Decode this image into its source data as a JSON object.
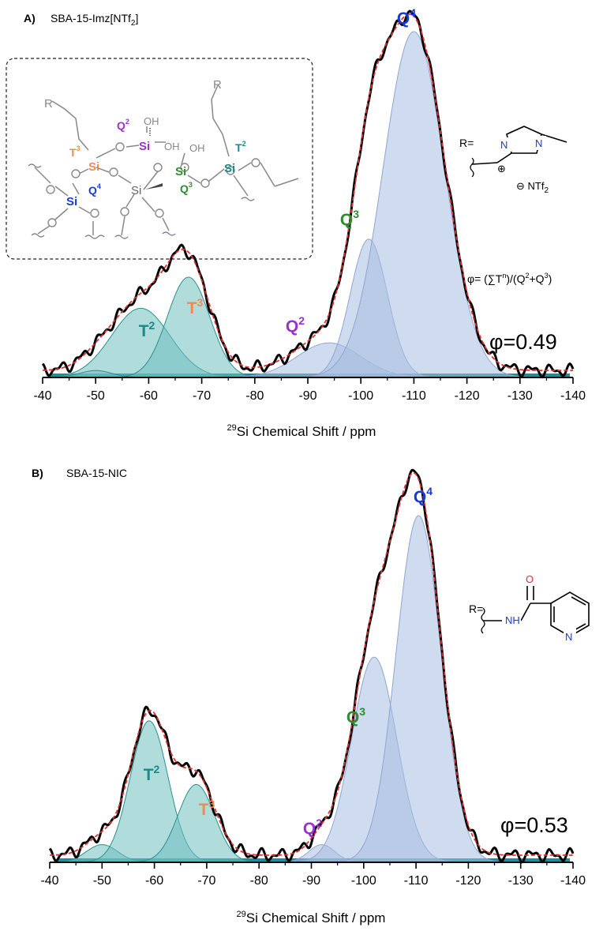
{
  "colors": {
    "T": "#1a8a8a",
    "T3": "#f08a50",
    "Q2": "#9b30d0",
    "Q3": "#2e8b2e",
    "Q4": "#1a3ad8",
    "fit": "#e03030",
    "exp": "#000000",
    "q_fill": "#a8bde0",
    "t_fill": "#6fc0c0",
    "baseline": "#1e8c9c"
  },
  "chart_data": [
    {
      "type": "area",
      "panel": "A)",
      "title": "SBA-15-Imz[NTf",
      "title_sub": "2",
      "title_end": "]",
      "xlabel_sup": "29",
      "xlabel": "Si Chemical Shift / ppm",
      "xlim": [
        -40,
        -140
      ],
      "xticks": [
        -40,
        -50,
        -60,
        -70,
        -80,
        -90,
        -100,
        -110,
        -120,
        -130,
        -140
      ],
      "peaks": [
        {
          "name": "T2",
          "center": -58.5,
          "height": 0.2,
          "width": 5.5
        },
        {
          "name": "T3",
          "center": -67.5,
          "height": 0.29,
          "width": 4.0
        },
        {
          "name": "T1",
          "center": -50.0,
          "height": 0.02,
          "width": 3.0
        },
        {
          "name": "Q2",
          "center": -94.0,
          "height": 0.1,
          "width": 6.0
        },
        {
          "name": "Q3",
          "center": -101.5,
          "height": 0.4,
          "width": 3.5
        },
        {
          "name": "Q4",
          "center": -110.0,
          "height": 1.0,
          "width": 5.8
        }
      ],
      "labels": {
        "T2": "T",
        "T2_sup": "2",
        "T3": "T",
        "T3_sup": "3",
        "Q2": "Q",
        "Q2_sup": "2",
        "Q3": "Q",
        "Q3_sup": "3",
        "Q4": "Q",
        "Q4_sup": "4"
      },
      "phi": "φ=0.49",
      "formula": "φ= (∑T",
      "formula_sup1": "n",
      "formula_mid": ")/(Q",
      "formula_sup2": "2",
      "formula_mid2": "+Q",
      "formula_sup3": "3",
      "formula_end": ")",
      "r_label": "R=",
      "counter_ion": "⊖ NTf",
      "counter_sub": "2"
    },
    {
      "type": "area",
      "panel": "B)",
      "title": "SBA-15-NIC",
      "xlabel_sup": "29",
      "xlabel": "Si Chemical Shift / ppm",
      "xlim": [
        -40,
        -140
      ],
      "xticks": [
        -40,
        -50,
        -60,
        -70,
        -80,
        -90,
        -100,
        -110,
        -120,
        -130,
        -140
      ],
      "peaks": [
        {
          "name": "T1",
          "center": -50.0,
          "height": 0.05,
          "width": 3.0
        },
        {
          "name": "T2",
          "center": -59.0,
          "height": 0.4,
          "width": 3.6
        },
        {
          "name": "T3",
          "center": -68.0,
          "height": 0.22,
          "width": 3.5
        },
        {
          "name": "Q2",
          "center": -92.0,
          "height": 0.05,
          "width": 2.5
        },
        {
          "name": "Q3",
          "center": -102.0,
          "height": 0.58,
          "width": 4.3
        },
        {
          "name": "Q4",
          "center": -110.5,
          "height": 0.98,
          "width": 4.3
        }
      ],
      "labels": {
        "T2": "T",
        "T2_sup": "2",
        "T3": "T",
        "T3_sup": "3",
        "Q2": "Q",
        "Q2_sup": "2",
        "Q3": "Q",
        "Q3_sup": "3",
        "Q4": "Q",
        "Q4_sup": "4"
      },
      "phi": "φ=0.53",
      "r_label": "R="
    }
  ],
  "scheme": {
    "R": "R",
    "Si": "Si",
    "O": "O",
    "OH": "OH",
    "T": "T",
    "Q": "Q",
    "sup2": "2",
    "sup3": "3",
    "sup4": "4"
  },
  "nic": {
    "O": "O",
    "NH": "NH",
    "N": "N",
    "H": "H"
  },
  "imz": {
    "N": "N",
    "plus": "⊕"
  }
}
